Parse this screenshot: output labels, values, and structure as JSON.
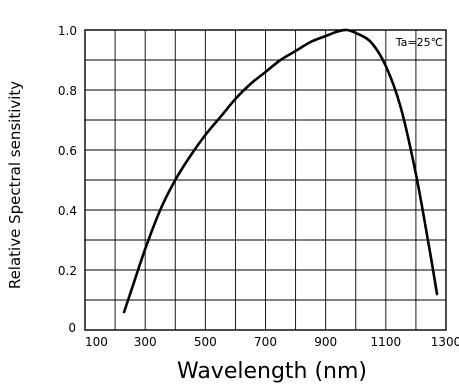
{
  "chart_data": {
    "type": "line",
    "title": "",
    "xlabel": "Wavelength (nm)",
    "ylabel": "Relative Spectral sensitivity",
    "xlim": [
      100,
      1300
    ],
    "ylim": [
      0,
      1.0
    ],
    "x_tick_labels": [
      "100",
      "300",
      "500",
      "700",
      "900",
      "1100",
      "1300"
    ],
    "y_tick_labels": [
      "0",
      "0.2",
      "0.4",
      "0.6",
      "0.8",
      "1.0"
    ],
    "grid": true,
    "annotation": "Ta=25℃",
    "series": [
      {
        "name": "",
        "x": [
          230,
          260,
          300,
          350,
          400,
          450,
          500,
          550,
          600,
          650,
          700,
          750,
          800,
          850,
          900,
          940,
          970,
          1000,
          1050,
          1100,
          1150,
          1200,
          1240,
          1270
        ],
        "y": [
          0.06,
          0.15,
          0.27,
          0.4,
          0.5,
          0.58,
          0.65,
          0.71,
          0.77,
          0.82,
          0.86,
          0.9,
          0.93,
          0.96,
          0.98,
          0.995,
          1.0,
          0.99,
          0.96,
          0.88,
          0.74,
          0.52,
          0.3,
          0.12
        ]
      }
    ]
  }
}
